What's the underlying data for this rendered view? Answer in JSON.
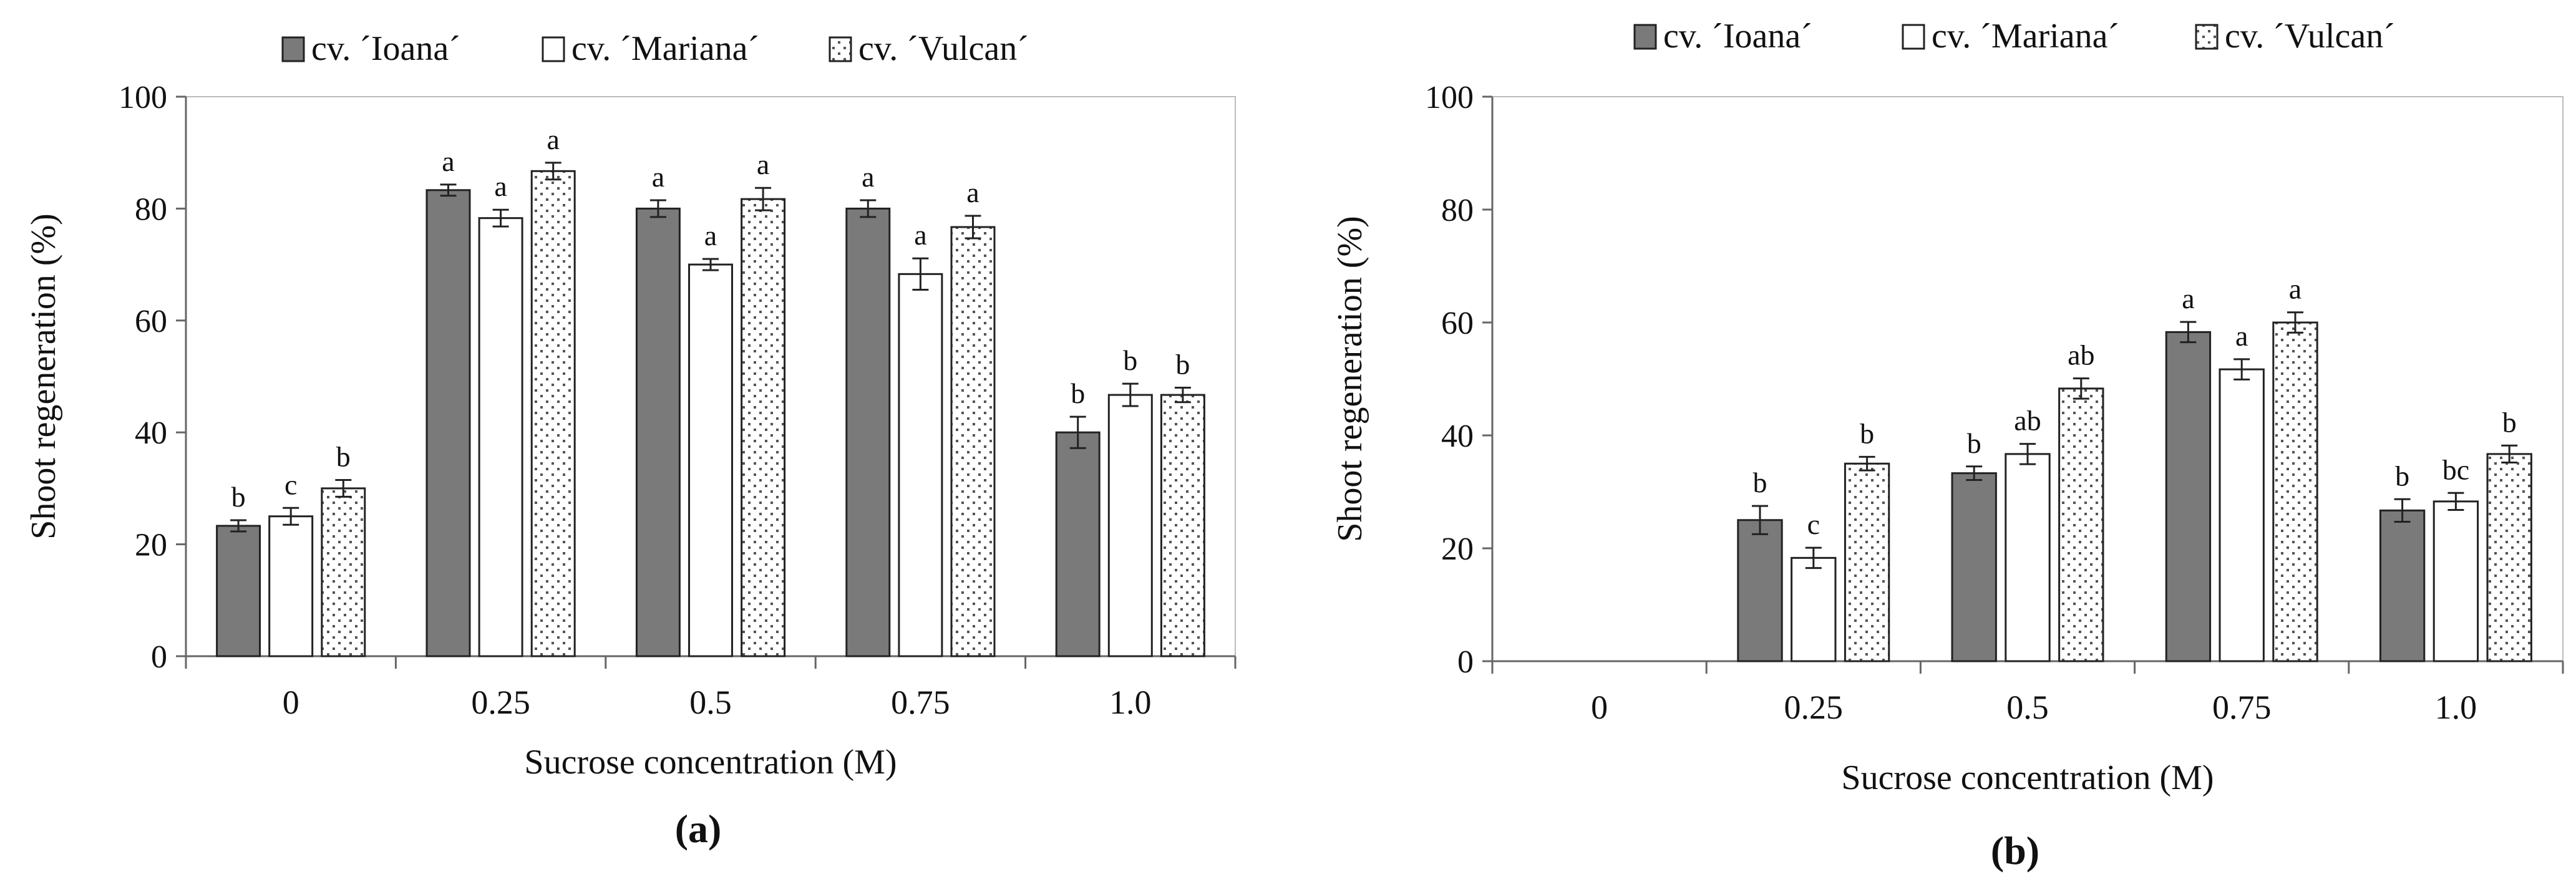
{
  "colors": {
    "ioana_fill": "#7a7a7a",
    "mariana_fill": "#ffffff",
    "vulcan_fill": "#ffffff",
    "vulcan_dots": "#555555",
    "outline": "#222222",
    "axis": "#666666"
  },
  "legend": [
    "cv. ´Ioana´",
    "cv. ´Mariana´",
    "cv. ´Vulcan´"
  ],
  "chart_data": [
    {
      "type": "bar",
      "panel_label": "(a)",
      "title": "",
      "xlabel": "Sucrose concentration (M)",
      "ylabel": "Shoot regeneration (%)",
      "ylim": [
        0,
        100
      ],
      "yticks": [
        0,
        20,
        40,
        60,
        80,
        100
      ],
      "categories": [
        "0",
        "0.25",
        "0.5",
        "0.75",
        "1.0"
      ],
      "series": [
        {
          "name": "cv. ´Ioana´",
          "values": [
            23.3,
            83.3,
            80.0,
            80.0,
            40.0
          ],
          "errors": [
            1.0,
            1.0,
            1.5,
            1.5,
            2.8
          ],
          "labels": [
            "b",
            "a",
            "a",
            "a",
            "b"
          ]
        },
        {
          "name": "cv. ´Mariana´",
          "values": [
            25.0,
            78.3,
            70.0,
            68.3,
            46.7
          ],
          "errors": [
            1.5,
            1.5,
            1.0,
            2.8,
            2.0
          ],
          "labels": [
            "c",
            "a",
            "a",
            "a",
            "b"
          ]
        },
        {
          "name": "cv. ´Vulcan´",
          "values": [
            30.0,
            86.7,
            81.7,
            76.7,
            46.7
          ],
          "errors": [
            1.5,
            1.5,
            2.0,
            2.0,
            1.3
          ],
          "labels": [
            "b",
            "a",
            "a",
            "a",
            "b"
          ]
        }
      ]
    },
    {
      "type": "bar",
      "panel_label": "(b)",
      "title": "",
      "xlabel": "Sucrose concentration (M)",
      "ylabel": "Shoot regeneration (%)",
      "ylim": [
        0,
        100
      ],
      "yticks": [
        0,
        20,
        40,
        60,
        80,
        100
      ],
      "categories": [
        "0",
        "0.25",
        "0.5",
        "0.75",
        "1.0"
      ],
      "series": [
        {
          "name": "cv. ´Ioana´",
          "values": [
            null,
            25.0,
            33.3,
            58.3,
            26.7
          ],
          "errors": [
            null,
            2.5,
            1.2,
            1.8,
            2.0
          ],
          "labels": [
            "",
            "b",
            "b",
            "a",
            "b"
          ]
        },
        {
          "name": "cv. ´Mariana´",
          "values": [
            null,
            18.3,
            36.7,
            51.7,
            28.3
          ],
          "errors": [
            null,
            1.8,
            1.8,
            1.8,
            1.5
          ],
          "labels": [
            "",
            "c",
            "ab",
            "a",
            "bc"
          ]
        },
        {
          "name": "cv. ´Vulcan´",
          "values": [
            null,
            35.0,
            48.3,
            60.0,
            36.7
          ],
          "errors": [
            null,
            1.2,
            1.8,
            1.8,
            1.5
          ],
          "labels": [
            "",
            "b",
            "ab",
            "a",
            "b"
          ]
        }
      ]
    }
  ]
}
